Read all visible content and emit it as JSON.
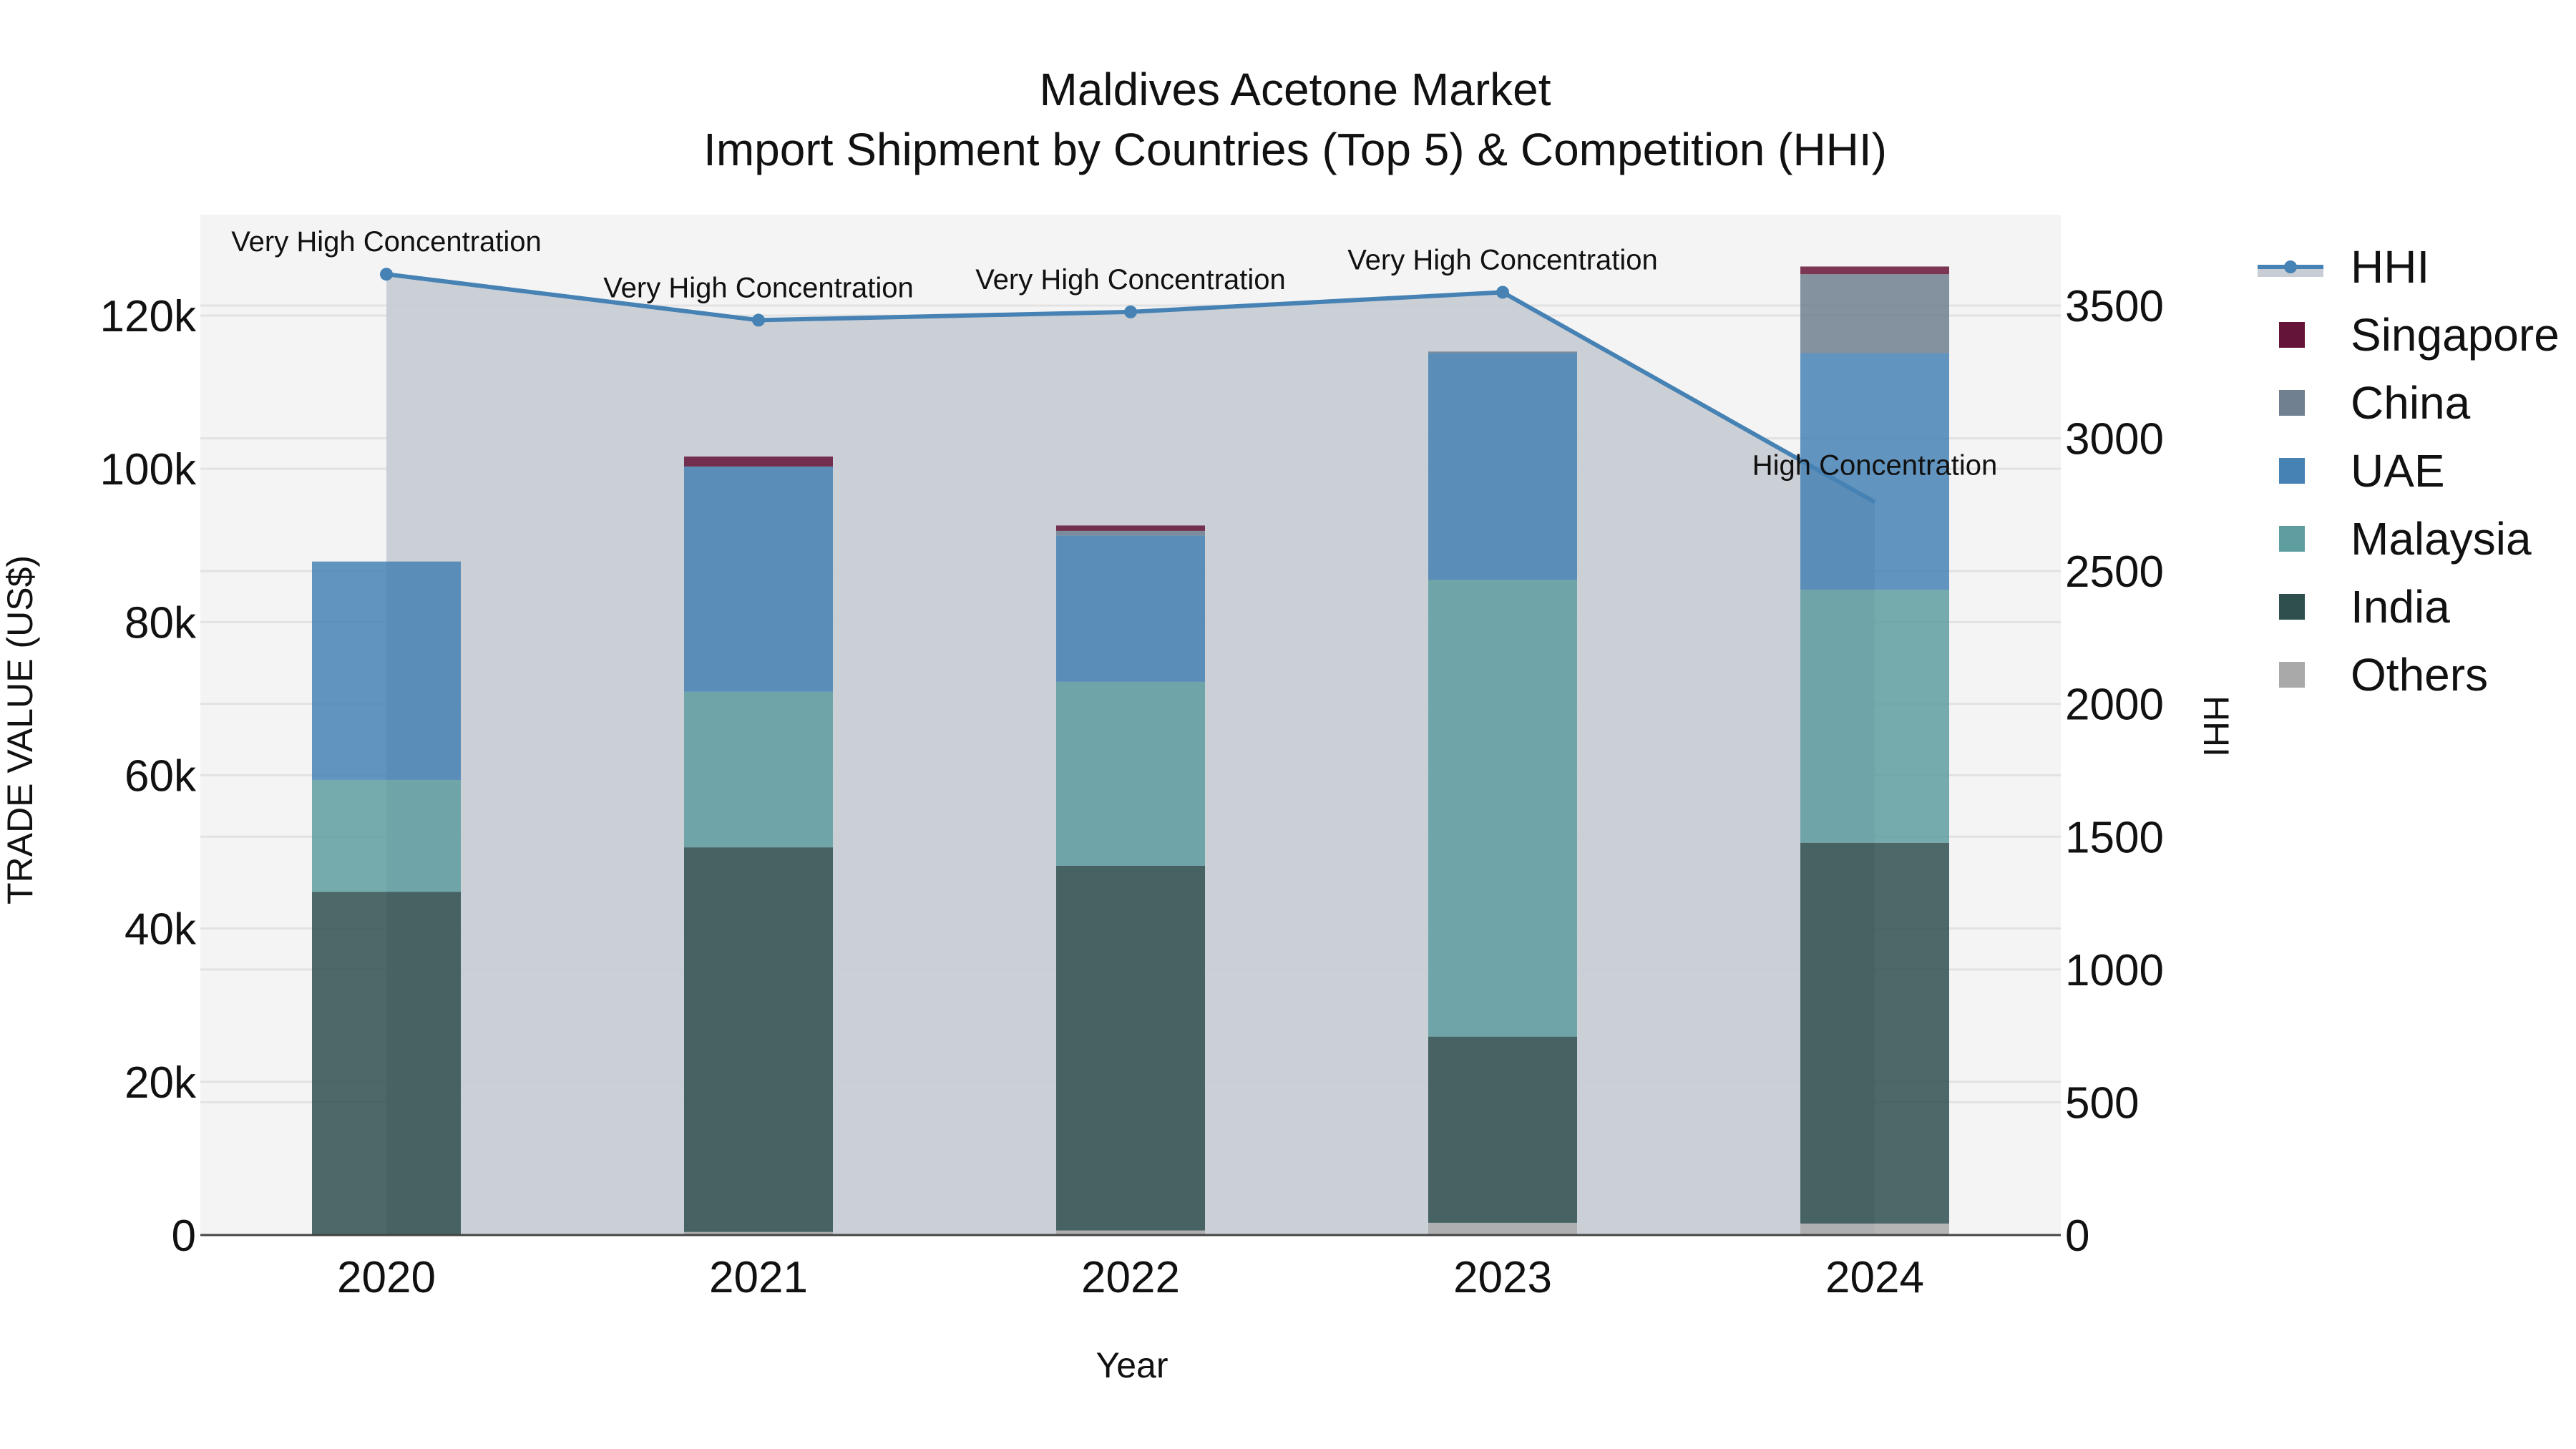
{
  "chart_data": {
    "type": "bar",
    "subtype": "stacked bar with line overlay (secondary axis)",
    "title": "Maldives Acetone Market",
    "subtitle": "Import Shipment by Countries (Top 5) & Competition (HHI)",
    "xlabel": "Year",
    "ylabel": "TRADE VALUE (US$)",
    "y2label": "HHI",
    "categories": [
      "2020",
      "2021",
      "2022",
      "2023",
      "2024"
    ],
    "ylim": [
      0,
      132000
    ],
    "y2lim": [
      0,
      3850
    ],
    "yticks": [
      0,
      20000,
      40000,
      60000,
      80000,
      100000,
      120000
    ],
    "ytick_labels": [
      "0",
      "20k",
      "40k",
      "60k",
      "80k",
      "100k",
      "120k"
    ],
    "y2ticks": [
      0,
      500,
      1000,
      1500,
      2000,
      2500,
      3000,
      3500
    ],
    "y2tick_labels": [
      "0",
      "500",
      "1000",
      "1500",
      "2000",
      "2500",
      "3000",
      "3500"
    ],
    "grid": true,
    "legend_position": "right",
    "series": [
      {
        "name": "Others",
        "type": "bar",
        "color": "#a9a9a9",
        "values": [
          0,
          400,
          600,
          1600,
          1500
        ]
      },
      {
        "name": "India",
        "type": "bar",
        "color": "#2f4f4f",
        "values": [
          44800,
          50200,
          47600,
          24300,
          49700
        ]
      },
      {
        "name": "Malaysia",
        "type": "bar",
        "color": "#5f9ea0",
        "values": [
          14600,
          20300,
          24000,
          59600,
          33000
        ]
      },
      {
        "name": "UAE",
        "type": "bar",
        "color": "#4682b4",
        "values": [
          28500,
          29400,
          19100,
          29600,
          30900
        ]
      },
      {
        "name": "China",
        "type": "bar",
        "color": "#708090",
        "values": [
          0,
          0,
          600,
          200,
          10300
        ]
      },
      {
        "name": "Singapore",
        "type": "bar",
        "color": "#641436",
        "values": [
          0,
          1300,
          700,
          0,
          1000
        ]
      },
      {
        "name": "HHI",
        "type": "line",
        "axis": "y2",
        "color": "#4682b4",
        "fill": "#c8ccd4",
        "values": [
          3618,
          3445,
          3476,
          3550,
          2760
        ]
      }
    ],
    "annotations": [
      {
        "x": "2020",
        "text": "Very High Concentration"
      },
      {
        "x": "2021",
        "text": "Very High Concentration"
      },
      {
        "x": "2022",
        "text": "Very High Concentration"
      },
      {
        "x": "2023",
        "text": "Very High Concentration"
      },
      {
        "x": "2024",
        "text": "High Concentration"
      }
    ]
  },
  "legend": {
    "items": [
      {
        "label": "HHI",
        "color": "#4682b4"
      },
      {
        "label": "Singapore",
        "color": "#641436"
      },
      {
        "label": "China",
        "color": "#708090"
      },
      {
        "label": "UAE",
        "color": "#4682b4"
      },
      {
        "label": "Malaysia",
        "color": "#5f9ea0"
      },
      {
        "label": "India",
        "color": "#2f4f4f"
      },
      {
        "label": "Others",
        "color": "#a9a9a9"
      }
    ]
  }
}
